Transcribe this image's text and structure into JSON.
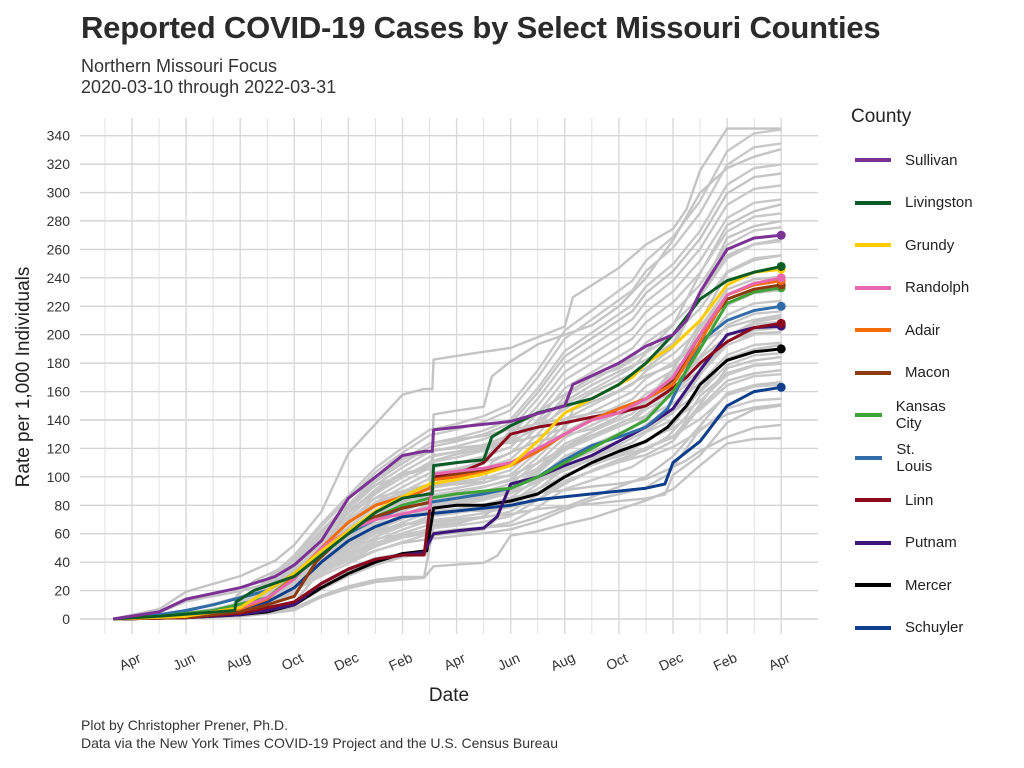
{
  "chart_data": {
    "type": "line",
    "title": "Reported COVID-19 Cases by Select Missouri Counties",
    "subtitle_line1": "Northern Missouri Focus",
    "subtitle_line2": "2020-03-10 through 2022-03-31",
    "xlabel": "Date",
    "ylabel": "Rate per 1,000 Individuals",
    "ylim": [
      0,
      340
    ],
    "y_ticks": [
      0,
      20,
      40,
      60,
      80,
      100,
      120,
      140,
      160,
      180,
      200,
      220,
      240,
      260,
      280,
      300,
      320,
      340
    ],
    "x_range_months": [
      0.3,
      25.0
    ],
    "x_ticks": [
      {
        "m": 1,
        "label": "Apr"
      },
      {
        "m": 3,
        "label": "Jun"
      },
      {
        "m": 5,
        "label": "Aug"
      },
      {
        "m": 7,
        "label": "Oct"
      },
      {
        "m": 9,
        "label": "Dec"
      },
      {
        "m": 11,
        "label": "Feb"
      },
      {
        "m": 13,
        "label": "Apr"
      },
      {
        "m": 15,
        "label": "Jun"
      },
      {
        "m": 17,
        "label": "Aug"
      },
      {
        "m": 19,
        "label": "Oct"
      },
      {
        "m": 21,
        "label": "Dec"
      },
      {
        "m": 23,
        "label": "Feb"
      },
      {
        "m": 25,
        "label": "Apr"
      }
    ],
    "legend_title": "County",
    "background_scale": [
      1.4,
      1.36,
      1.3,
      1.24,
      1.2,
      1.16,
      1.12,
      1.08,
      1.04,
      1.0,
      0.97,
      0.94,
      0.91,
      0.88,
      0.85,
      0.82,
      0.79,
      0.76,
      0.73,
      0.7,
      0.67,
      0.63
    ],
    "series": [
      {
        "name": "Sullivan",
        "color": "#7B3294",
        "points": [
          [
            0.3,
            0
          ],
          [
            2,
            5
          ],
          [
            3,
            14
          ],
          [
            5,
            22
          ],
          [
            6.3,
            30
          ],
          [
            7,
            38
          ],
          [
            8,
            55
          ],
          [
            9,
            85
          ],
          [
            10,
            100
          ],
          [
            11,
            115
          ],
          [
            11.8,
            118
          ],
          [
            12.1,
            118
          ],
          [
            12.15,
            133
          ],
          [
            13.5,
            136
          ],
          [
            15,
            139
          ],
          [
            17,
            150
          ],
          [
            17.3,
            165
          ],
          [
            19,
            180
          ],
          [
            20,
            192
          ],
          [
            21,
            200
          ],
          [
            21.5,
            210
          ],
          [
            22,
            230
          ],
          [
            23,
            260
          ],
          [
            24,
            268
          ],
          [
            25,
            270
          ]
        ]
      },
      {
        "name": "Livingston",
        "color": "#0B5B27",
        "points": [
          [
            0.3,
            0
          ],
          [
            2,
            2
          ],
          [
            4.8,
            6
          ],
          [
            4.85,
            12
          ],
          [
            5.5,
            20
          ],
          [
            7,
            30
          ],
          [
            8,
            45
          ],
          [
            9,
            60
          ],
          [
            10,
            75
          ],
          [
            11,
            85
          ],
          [
            12,
            88
          ],
          [
            12.1,
            88
          ],
          [
            12.15,
            108
          ],
          [
            13,
            110
          ],
          [
            14,
            112
          ],
          [
            14.3,
            128
          ],
          [
            15,
            136
          ],
          [
            16,
            145
          ],
          [
            17,
            150
          ],
          [
            18,
            155
          ],
          [
            19,
            165
          ],
          [
            20,
            180
          ],
          [
            21,
            200
          ],
          [
            22,
            225
          ],
          [
            23,
            238
          ],
          [
            24,
            244
          ],
          [
            25,
            248
          ]
        ]
      },
      {
        "name": "Grundy",
        "color": "#FFCC00",
        "points": [
          [
            0.3,
            0
          ],
          [
            3,
            2
          ],
          [
            5,
            8
          ],
          [
            6,
            20
          ],
          [
            7,
            32
          ],
          [
            8,
            48
          ],
          [
            9,
            62
          ],
          [
            10,
            76
          ],
          [
            11,
            86
          ],
          [
            12,
            95
          ],
          [
            13,
            98
          ],
          [
            14,
            102
          ],
          [
            15,
            108
          ],
          [
            16,
            125
          ],
          [
            17,
            145
          ],
          [
            18,
            155
          ],
          [
            19,
            165
          ],
          [
            19.5,
            170
          ],
          [
            20,
            180
          ],
          [
            21,
            192
          ],
          [
            22,
            210
          ],
          [
            23,
            235
          ],
          [
            24,
            244
          ],
          [
            25,
            246
          ]
        ]
      },
      {
        "name": "Randolph",
        "color": "#E868B0",
        "points": [
          [
            0.3,
            0
          ],
          [
            3,
            2
          ],
          [
            5,
            8
          ],
          [
            6,
            15
          ],
          [
            7,
            28
          ],
          [
            8,
            50
          ],
          [
            9,
            62
          ],
          [
            10,
            70
          ],
          [
            11,
            74
          ],
          [
            12,
            78
          ],
          [
            12.15,
            102
          ],
          [
            13,
            104
          ],
          [
            14,
            106
          ],
          [
            15,
            110
          ],
          [
            16,
            120
          ],
          [
            17,
            130
          ],
          [
            18,
            140
          ],
          [
            19,
            145
          ],
          [
            20,
            155
          ],
          [
            21,
            170
          ],
          [
            22,
            200
          ],
          [
            23,
            228
          ],
          [
            24,
            236
          ],
          [
            25,
            240
          ]
        ]
      },
      {
        "name": "Adair",
        "color": "#F46C0A",
        "points": [
          [
            0.3,
            0
          ],
          [
            3,
            2
          ],
          [
            5,
            7
          ],
          [
            6,
            14
          ],
          [
            7,
            30
          ],
          [
            8,
            50
          ],
          [
            9,
            68
          ],
          [
            10,
            80
          ],
          [
            11,
            86
          ],
          [
            11.5,
            88
          ],
          [
            12,
            92
          ],
          [
            12.15,
            98
          ],
          [
            13,
            100
          ],
          [
            14,
            103
          ],
          [
            15,
            108
          ],
          [
            16,
            118
          ],
          [
            17,
            130
          ],
          [
            18,
            140
          ],
          [
            19,
            148
          ],
          [
            20,
            155
          ],
          [
            21,
            165
          ],
          [
            22,
            195
          ],
          [
            23,
            228
          ],
          [
            24,
            235
          ],
          [
            25,
            238
          ]
        ]
      },
      {
        "name": "Macon",
        "color": "#8E3A10",
        "points": [
          [
            0.3,
            0
          ],
          [
            3,
            1
          ],
          [
            5,
            5
          ],
          [
            6,
            10
          ],
          [
            7,
            16
          ],
          [
            7.8,
            40
          ],
          [
            9,
            62
          ],
          [
            10,
            72
          ],
          [
            11,
            78
          ],
          [
            12,
            82
          ],
          [
            12.15,
            98
          ],
          [
            13,
            102
          ],
          [
            14,
            105
          ],
          [
            15,
            110
          ],
          [
            16,
            118
          ],
          [
            17,
            130
          ],
          [
            18,
            140
          ],
          [
            19,
            148
          ],
          [
            20,
            155
          ],
          [
            21,
            168
          ],
          [
            22,
            200
          ],
          [
            23,
            225
          ],
          [
            24,
            232
          ],
          [
            25,
            235
          ]
        ]
      },
      {
        "name": "Kansas City",
        "color": "#3FA338",
        "points": [
          [
            0.3,
            0
          ],
          [
            2,
            2
          ],
          [
            4,
            6
          ],
          [
            6,
            15
          ],
          [
            7,
            30
          ],
          [
            8,
            48
          ],
          [
            9,
            62
          ],
          [
            10,
            72
          ],
          [
            11,
            80
          ],
          [
            12,
            85
          ],
          [
            13,
            88
          ],
          [
            14,
            90
          ],
          [
            15,
            92
          ],
          [
            16,
            100
          ],
          [
            17,
            110
          ],
          [
            18,
            120
          ],
          [
            19,
            130
          ],
          [
            20,
            140
          ],
          [
            21,
            160
          ],
          [
            22,
            190
          ],
          [
            23,
            222
          ],
          [
            24,
            230
          ],
          [
            25,
            233
          ]
        ]
      },
      {
        "name": "St. Louis",
        "color": "#2F6CA8",
        "points": [
          [
            0.3,
            0
          ],
          [
            2,
            3
          ],
          [
            3,
            6
          ],
          [
            4,
            10
          ],
          [
            6,
            20
          ],
          [
            7,
            32
          ],
          [
            8,
            48
          ],
          [
            9,
            60
          ],
          [
            10,
            70
          ],
          [
            11,
            78
          ],
          [
            12,
            82
          ],
          [
            13,
            85
          ],
          [
            14,
            88
          ],
          [
            15,
            92
          ],
          [
            16,
            100
          ],
          [
            17,
            112
          ],
          [
            18,
            122
          ],
          [
            19,
            128
          ],
          [
            20,
            135
          ],
          [
            20.8,
            148
          ],
          [
            21.5,
            175
          ],
          [
            22,
            195
          ],
          [
            23,
            210
          ],
          [
            24,
            217
          ],
          [
            25,
            220
          ]
        ]
      },
      {
        "name": "Linn",
        "color": "#8B0A1E",
        "points": [
          [
            0.3,
            0
          ],
          [
            3,
            1
          ],
          [
            5,
            4
          ],
          [
            6,
            8
          ],
          [
            6.5,
            10
          ],
          [
            7,
            12
          ],
          [
            8,
            25
          ],
          [
            9,
            35
          ],
          [
            10,
            42
          ],
          [
            11,
            45
          ],
          [
            11.8,
            45
          ],
          [
            12.15,
            100
          ],
          [
            13,
            102
          ],
          [
            14,
            110
          ],
          [
            15,
            130
          ],
          [
            16,
            135
          ],
          [
            17,
            138
          ],
          [
            18,
            142
          ],
          [
            19,
            145
          ],
          [
            20,
            150
          ],
          [
            20.8,
            160
          ],
          [
            21.5,
            170
          ],
          [
            22,
            180
          ],
          [
            23,
            195
          ],
          [
            24,
            205
          ],
          [
            25,
            208
          ]
        ]
      },
      {
        "name": "Putnam",
        "color": "#3B1578",
        "points": [
          [
            0.3,
            0
          ],
          [
            3,
            1
          ],
          [
            5,
            3
          ],
          [
            6,
            6
          ],
          [
            7,
            10
          ],
          [
            8,
            25
          ],
          [
            9,
            35
          ],
          [
            10,
            42
          ],
          [
            11,
            45
          ],
          [
            11.8,
            47
          ],
          [
            12.15,
            60
          ],
          [
            13,
            62
          ],
          [
            14,
            64
          ],
          [
            14.5,
            72
          ],
          [
            15,
            95
          ],
          [
            16,
            100
          ],
          [
            17,
            108
          ],
          [
            18,
            115
          ],
          [
            19,
            125
          ],
          [
            20,
            135
          ],
          [
            21,
            148
          ],
          [
            22,
            175
          ],
          [
            23,
            200
          ],
          [
            24,
            205
          ],
          [
            25,
            206
          ]
        ]
      },
      {
        "name": "Mercer",
        "color": "#000000",
        "points": [
          [
            0.3,
            0
          ],
          [
            3,
            1
          ],
          [
            5,
            3
          ],
          [
            6,
            5
          ],
          [
            7,
            10
          ],
          [
            8,
            22
          ],
          [
            9,
            32
          ],
          [
            10,
            40
          ],
          [
            11,
            46
          ],
          [
            11.9,
            48
          ],
          [
            12.15,
            78
          ],
          [
            13,
            80
          ],
          [
            14,
            80
          ],
          [
            15,
            83
          ],
          [
            16,
            88
          ],
          [
            17,
            100
          ],
          [
            18,
            110
          ],
          [
            19,
            118
          ],
          [
            20,
            125
          ],
          [
            20.8,
            135
          ],
          [
            21.5,
            150
          ],
          [
            22,
            165
          ],
          [
            23,
            182
          ],
          [
            24,
            188
          ],
          [
            25,
            190
          ]
        ]
      },
      {
        "name": "Schuyler",
        "color": "#0E3F8C",
        "points": [
          [
            0.3,
            0
          ],
          [
            3,
            1
          ],
          [
            5,
            5
          ],
          [
            6,
            12
          ],
          [
            7,
            22
          ],
          [
            8,
            40
          ],
          [
            9,
            55
          ],
          [
            10,
            65
          ],
          [
            11,
            72
          ],
          [
            12,
            74
          ],
          [
            13,
            76
          ],
          [
            14,
            78
          ],
          [
            15,
            80
          ],
          [
            16,
            84
          ],
          [
            17,
            86
          ],
          [
            18,
            88
          ],
          [
            19,
            90
          ],
          [
            20,
            92
          ],
          [
            20.7,
            95
          ],
          [
            21,
            110
          ],
          [
            22,
            125
          ],
          [
            23,
            150
          ],
          [
            24,
            160
          ],
          [
            25,
            163
          ]
        ]
      }
    ]
  }
}
